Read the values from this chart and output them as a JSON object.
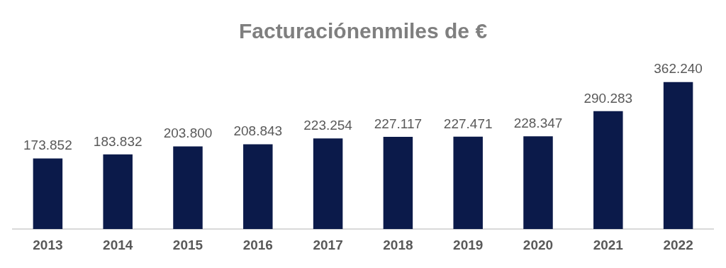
{
  "chart_data": {
    "type": "bar",
    "title": "Facturaciónenmiles de €",
    "categories": [
      "2013",
      "2014",
      "2015",
      "2016",
      "2017",
      "2018",
      "2019",
      "2020",
      "2021",
      "2022"
    ],
    "values": [
      173852,
      183832,
      203800,
      208843,
      223254,
      227117,
      227471,
      228347,
      290283,
      362240
    ],
    "value_labels": [
      "173.852",
      "183.832",
      "203.800",
      "208.843",
      "223.254",
      "227.117",
      "227.471",
      "228.347",
      "290.283",
      "362.240"
    ],
    "color": "#0b1a4a",
    "grid": false,
    "legend": false
  }
}
